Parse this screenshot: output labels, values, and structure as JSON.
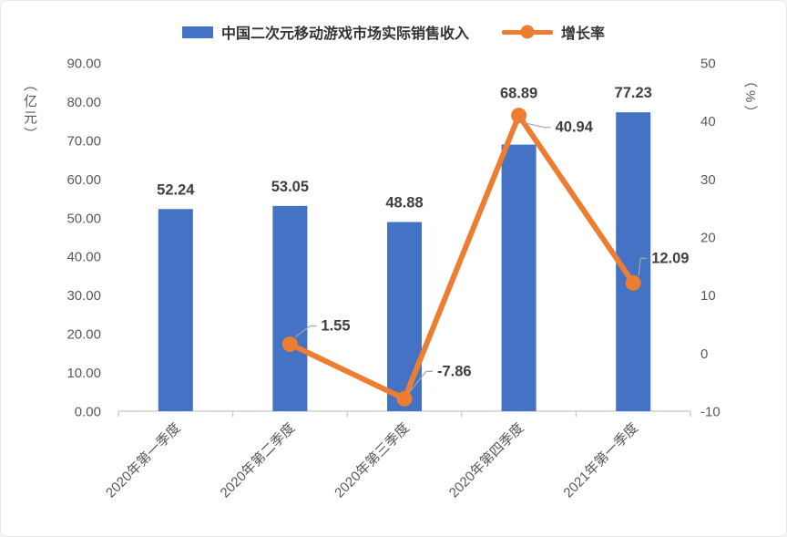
{
  "chart_data": {
    "type": "combo_bar_line",
    "categories": [
      "2020年第一季度",
      "2020年第二季度",
      "2020年第三季度",
      "2020年第四季度",
      "2021年第一季度"
    ],
    "series": [
      {
        "name": "中国二次元移动游戏市场实际销售收入",
        "chart_type": "bar",
        "axis": "left",
        "color": "#4472C4",
        "values": [
          52.24,
          53.05,
          48.88,
          68.89,
          77.23
        ],
        "labels": [
          "52.24",
          "53.05",
          "48.88",
          "68.89",
          "77.23"
        ]
      },
      {
        "name": "增长率",
        "chart_type": "line",
        "axis": "right",
        "color": "#ED7D31",
        "values": [
          null,
          1.55,
          -7.86,
          40.94,
          12.09
        ],
        "labels": [
          null,
          "1.55",
          "-7.86",
          "40.94",
          "12.09"
        ]
      }
    ],
    "left_axis": {
      "title": "（亿元）",
      "min": 0,
      "max": 90,
      "tick_labels": [
        "0.00",
        "10.00",
        "20.00",
        "30.00",
        "40.00",
        "50.00",
        "60.00",
        "70.00",
        "80.00",
        "90.00"
      ]
    },
    "right_axis": {
      "title": "（%）",
      "min": -10,
      "max": 50,
      "tick_labels": [
        "-10",
        "0",
        "10",
        "20",
        "30",
        "40",
        "50"
      ]
    },
    "grid": false,
    "legend_position": "top-center"
  },
  "colors": {
    "bar": "#4472C4",
    "line": "#ED7D31",
    "tick_text": "#595959",
    "data_label_text": "#3f3f3f",
    "legend_text": "#333333",
    "axis_line": "#cfcfcf",
    "leader_line": "#a6a6a6"
  }
}
